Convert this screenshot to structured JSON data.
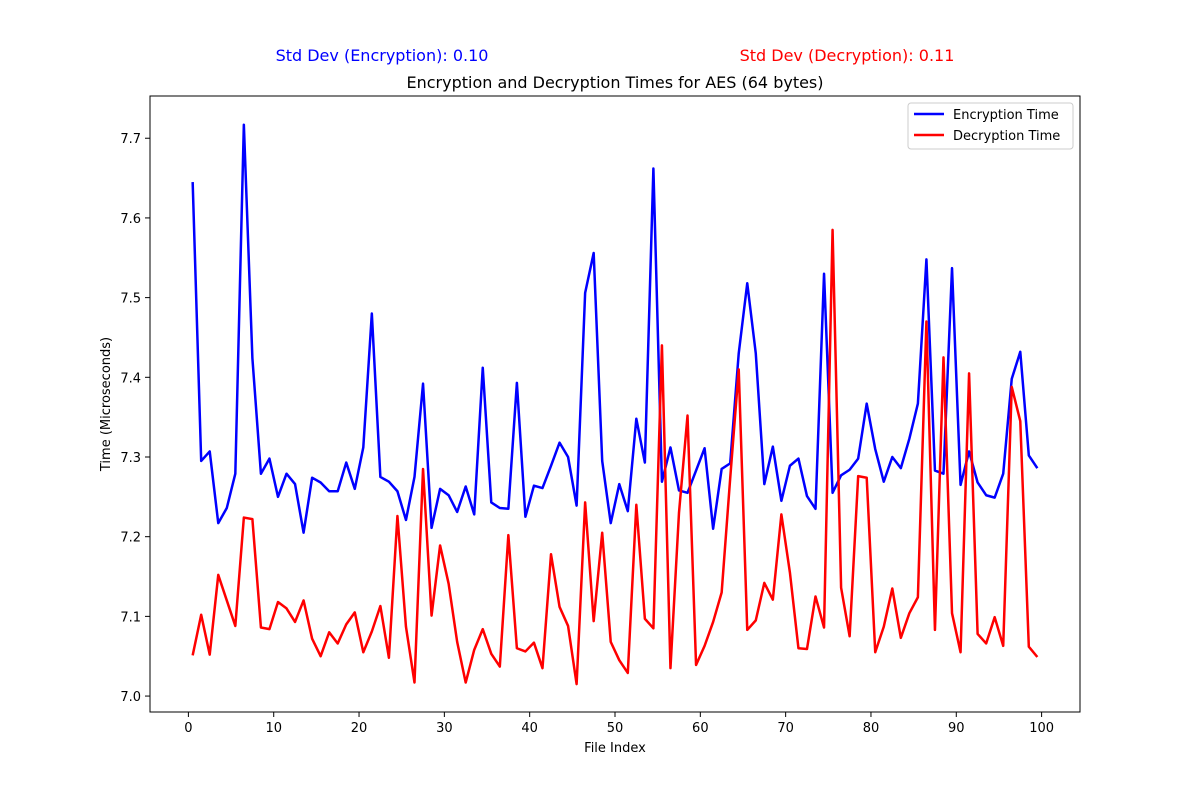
{
  "chart_data": {
    "type": "line",
    "title": "Encryption and Decryption Times for AES (64 bytes)",
    "xlabel": "File Index",
    "ylabel": "Time (Microseconds)",
    "xlim": [
      -4.5,
      104.5
    ],
    "ylim": [
      6.98,
      7.753
    ],
    "grid": false,
    "legend_position": "top-right",
    "annotations": {
      "std_encryption": "Std Dev (Encryption): 0.10",
      "std_decryption": "Std Dev (Decryption): 0.11"
    },
    "x_ticks": [
      0,
      10,
      20,
      30,
      40,
      50,
      60,
      70,
      80,
      90,
      100
    ],
    "x_tick_labels": [
      "0",
      "10",
      "20",
      "30",
      "40",
      "50",
      "60",
      "70",
      "80",
      "90",
      "100"
    ],
    "y_ticks": [
      7.0,
      7.1,
      7.2,
      7.3,
      7.4,
      7.5,
      7.6,
      7.7
    ],
    "y_tick_labels": [
      "7.0",
      "7.1",
      "7.2",
      "7.3",
      "7.4",
      "7.5",
      "7.6",
      "7.7"
    ],
    "x": [
      0.5,
      1.5,
      2.5,
      3.5,
      4.5,
      5.5,
      6.5,
      7.5,
      8.5,
      9.5,
      10.5,
      11.5,
      12.5,
      13.5,
      14.5,
      15.5,
      16.5,
      17.5,
      18.5,
      19.5,
      20.5,
      21.5,
      22.5,
      23.5,
      24.5,
      25.5,
      26.5,
      27.5,
      28.5,
      29.5,
      30.5,
      31.5,
      32.5,
      33.5,
      34.5,
      35.5,
      36.5,
      37.5,
      38.5,
      39.5,
      40.5,
      41.5,
      42.5,
      43.5,
      44.5,
      45.5,
      46.5,
      47.5,
      48.5,
      49.5,
      50.5,
      51.5,
      52.5,
      53.5,
      54.5,
      55.5,
      56.5,
      57.5,
      58.5,
      59.5,
      60.5,
      61.5,
      62.5,
      63.5,
      64.5,
      65.5,
      66.5,
      67.5,
      68.5,
      69.5,
      70.5,
      71.5,
      72.5,
      73.5,
      74.5,
      75.5,
      76.5,
      77.5,
      78.5,
      79.5,
      80.5,
      81.5,
      82.5,
      83.5,
      84.5,
      85.5,
      86.5,
      87.5,
      88.5,
      89.5,
      90.5,
      91.5,
      92.5,
      93.5,
      94.5,
      95.5,
      96.5,
      97.5,
      98.5,
      99.5
    ],
    "series": [
      {
        "name": "Encryption Time",
        "color": "#0000ff",
        "values": [
          7.645,
          7.295,
          7.307,
          7.217,
          7.236,
          7.279,
          7.717,
          7.424,
          7.279,
          7.298,
          7.25,
          7.279,
          7.266,
          7.205,
          7.274,
          7.268,
          7.257,
          7.257,
          7.293,
          7.26,
          7.312,
          7.48,
          7.275,
          7.269,
          7.257,
          7.221,
          7.275,
          7.392,
          7.211,
          7.26,
          7.252,
          7.231,
          7.263,
          7.228,
          7.412,
          7.243,
          7.236,
          7.235,
          7.393,
          7.225,
          7.264,
          7.261,
          7.289,
          7.318,
          7.3,
          7.239,
          7.506,
          7.556,
          7.295,
          7.217,
          7.266,
          7.232,
          7.348,
          7.293,
          7.662,
          7.269,
          7.312,
          7.258,
          7.255,
          7.283,
          7.311,
          7.21,
          7.285,
          7.292,
          7.43,
          7.518,
          7.43,
          7.266,
          7.313,
          7.245,
          7.289,
          7.298,
          7.251,
          7.235,
          7.53,
          7.255,
          7.277,
          7.284,
          7.298,
          7.367,
          7.31,
          7.269,
          7.3,
          7.286,
          7.323,
          7.367,
          7.548,
          7.283,
          7.279,
          7.537,
          7.265,
          7.307,
          7.268,
          7.252,
          7.249,
          7.279,
          7.398,
          7.432,
          7.302,
          7.286
        ]
      },
      {
        "name": "Decryption Time",
        "color": "#ff0000",
        "values": [
          7.051,
          7.102,
          7.052,
          7.152,
          7.12,
          7.088,
          7.224,
          7.222,
          7.086,
          7.084,
          7.118,
          7.11,
          7.093,
          7.12,
          7.072,
          7.05,
          7.08,
          7.066,
          7.09,
          7.105,
          7.055,
          7.081,
          7.113,
          7.048,
          7.226,
          7.087,
          7.017,
          7.285,
          7.101,
          7.189,
          7.141,
          7.068,
          7.017,
          7.058,
          7.084,
          7.053,
          7.037,
          7.202,
          7.06,
          7.056,
          7.067,
          7.035,
          7.178,
          7.112,
          7.088,
          7.015,
          7.243,
          7.094,
          7.205,
          7.068,
          7.045,
          7.029,
          7.24,
          7.097,
          7.085,
          7.44,
          7.035,
          7.23,
          7.352,
          7.039,
          7.063,
          7.093,
          7.13,
          7.273,
          7.41,
          7.083,
          7.095,
          7.142,
          7.121,
          7.228,
          7.155,
          7.06,
          7.059,
          7.125,
          7.086,
          7.585,
          7.136,
          7.075,
          7.276,
          7.274,
          7.055,
          7.087,
          7.135,
          7.073,
          7.104,
          7.124,
          7.47,
          7.083,
          7.425,
          7.104,
          7.055,
          7.405,
          7.078,
          7.066,
          7.099,
          7.063,
          7.388,
          7.345,
          7.062,
          7.049
        ]
      }
    ]
  }
}
